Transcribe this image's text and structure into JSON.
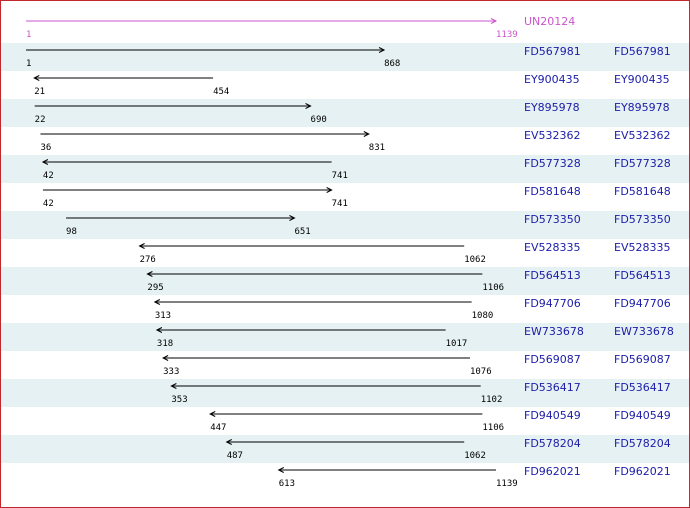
{
  "reference": {
    "name": "UN20124",
    "start": 1,
    "end": 1139,
    "color": "#cc55cc"
  },
  "rows": [
    {
      "name": "FD567981",
      "link": "FD567981",
      "start": 1,
      "end": 868,
      "forward": true
    },
    {
      "name": "EY900435",
      "link": "EY900435",
      "start": 21,
      "end": 454,
      "forward": false
    },
    {
      "name": "EY895978",
      "link": "EY895978",
      "start": 22,
      "end": 690,
      "forward": true
    },
    {
      "name": "EV532362",
      "link": "EV532362",
      "start": 36,
      "end": 831,
      "forward": true
    },
    {
      "name": "FD577328",
      "link": "FD577328",
      "start": 42,
      "end": 741,
      "forward": false
    },
    {
      "name": "FD581648",
      "link": "FD581648",
      "start": 42,
      "end": 741,
      "forward": true
    },
    {
      "name": "FD573350",
      "link": "FD573350",
      "start": 98,
      "end": 651,
      "forward": true
    },
    {
      "name": "EV528335",
      "link": "EV528335",
      "start": 276,
      "end": 1062,
      "forward": false
    },
    {
      "name": "FD564513",
      "link": "FD564513",
      "start": 295,
      "end": 1106,
      "forward": false
    },
    {
      "name": "FD947706",
      "link": "FD947706",
      "start": 313,
      "end": 1080,
      "forward": false
    },
    {
      "name": "EW733678",
      "link": "EW733678",
      "start": 318,
      "end": 1017,
      "forward": false
    },
    {
      "name": "FD569087",
      "link": "FD569087",
      "start": 333,
      "end": 1076,
      "forward": false
    },
    {
      "name": "FD536417",
      "link": "FD536417",
      "start": 353,
      "end": 1102,
      "forward": false
    },
    {
      "name": "FD940549",
      "link": "FD940549",
      "start": 447,
      "end": 1106,
      "forward": false
    },
    {
      "name": "FD578204",
      "link": "FD578204",
      "start": 487,
      "end": 1062,
      "forward": false
    },
    {
      "name": "FD962021",
      "link": "FD962021",
      "start": 613,
      "end": 1139,
      "forward": false
    }
  ]
}
